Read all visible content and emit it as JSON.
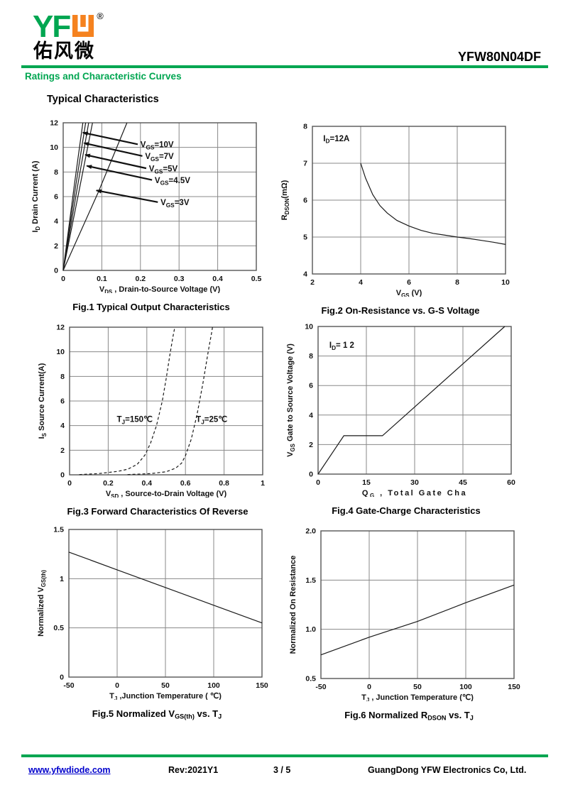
{
  "colors": {
    "brand_green": "#00a651",
    "brand_orange": "#f5821f",
    "link_blue": "#0000cc"
  },
  "header": {
    "logo_text_yf": "YF",
    "logo_w_glyph": "orange-u-notch-logo-glyph",
    "registered": "®",
    "logo_cjk": "佑风微",
    "part_number": "YFW80N04DF",
    "section_title": "Ratings and Characteristic Curves"
  },
  "main": {
    "heading": "Typical Characteristics"
  },
  "footer": {
    "website": "www.yfwdiode.com",
    "revision": "Rev:2021Y1",
    "page": "3 / 5",
    "company": "GuangDong YFW Electronics Co, Ltd."
  },
  "chart_data": [
    {
      "id": "fig1",
      "type": "line",
      "caption": [
        {
          "t": "Fig.1 Typical Output Characteristics"
        }
      ],
      "x": {
        "min": 0,
        "max": 0.5,
        "ticks": [
          [
            0,
            "0"
          ],
          [
            0.1,
            "0.1"
          ],
          [
            0.2,
            "0.2"
          ],
          [
            0.3,
            "0.3"
          ],
          [
            0.4,
            "0.4"
          ],
          [
            0.5,
            "0.5"
          ]
        ],
        "label": [
          {
            "t": "V"
          },
          {
            "t": "DS",
            "sub": 1
          },
          {
            "t": " , Drain-to-Source Voltage (V)"
          }
        ]
      },
      "y": {
        "min": 0,
        "max": 12,
        "ticks": [
          [
            0,
            "0"
          ],
          [
            2,
            "2"
          ],
          [
            4,
            "4"
          ],
          [
            6,
            "6"
          ],
          [
            8,
            "8"
          ],
          [
            10,
            "10"
          ],
          [
            12,
            "12"
          ]
        ],
        "label": [
          {
            "t": "I"
          },
          {
            "t": "D",
            "sub": 1
          },
          {
            "t": " Drain Current (A)"
          }
        ]
      },
      "series": [
        {
          "name": "VGS=10V",
          "points": [
            [
              0,
              0
            ],
            [
              0.03,
              7.2
            ],
            [
              0.051,
              12
            ]
          ]
        },
        {
          "name": "VGS=7V",
          "points": [
            [
              0,
              0
            ],
            [
              0.033,
              7.0
            ],
            [
              0.058,
              12
            ]
          ]
        },
        {
          "name": "VGS=5V",
          "points": [
            [
              0,
              0
            ],
            [
              0.037,
              6.8
            ],
            [
              0.066,
              12
            ]
          ]
        },
        {
          "name": "VGS=4.5V",
          "points": [
            [
              0,
              0
            ],
            [
              0.042,
              6.6
            ],
            [
              0.076,
              12
            ]
          ]
        },
        {
          "name": "VGS=3V",
          "points": [
            [
              0,
              0
            ],
            [
              0.09,
              6.3
            ],
            [
              0.165,
              12
            ]
          ]
        }
      ],
      "labels": [
        {
          "segments": [
            {
              "t": "V"
            },
            {
              "t": "GS",
              "sub": 1
            },
            {
              "t": "=10V"
            }
          ],
          "x": 0.2,
          "y": 10.0,
          "anchor": "start",
          "arrow": [
            [
              0.193,
              10.25
            ],
            [
              0.051,
              11.2
            ]
          ]
        },
        {
          "segments": [
            {
              "t": "V"
            },
            {
              "t": "GS",
              "sub": 1
            },
            {
              "t": "=7V"
            }
          ],
          "x": 0.212,
          "y": 9.05,
          "anchor": "start",
          "arrow": [
            [
              0.205,
              9.3
            ],
            [
              0.054,
              10.35
            ]
          ]
        },
        {
          "segments": [
            {
              "t": "V"
            },
            {
              "t": "GS",
              "sub": 1
            },
            {
              "t": "=5V"
            }
          ],
          "x": 0.222,
          "y": 8.05,
          "anchor": "start",
          "arrow": [
            [
              0.215,
              8.3
            ],
            [
              0.057,
              9.4
            ]
          ]
        },
        {
          "segments": [
            {
              "t": "V"
            },
            {
              "t": "GS",
              "sub": 1
            },
            {
              "t": "=4.5V"
            }
          ],
          "x": 0.237,
          "y": 7.1,
          "anchor": "start",
          "arrow": [
            [
              0.23,
              7.35
            ],
            [
              0.061,
              8.5
            ]
          ]
        },
        {
          "segments": [
            {
              "t": "V"
            },
            {
              "t": "GS",
              "sub": 1
            },
            {
              "t": "=3V"
            }
          ],
          "x": 0.252,
          "y": 5.3,
          "anchor": "start",
          "arrow": [
            [
              0.245,
              5.55
            ],
            [
              0.086,
              6.5
            ]
          ]
        }
      ]
    },
    {
      "id": "fig2",
      "type": "line",
      "caption": [
        {
          "t": "Fig.2 On-Resistance vs. G-S Voltage"
        }
      ],
      "x": {
        "min": 2,
        "max": 10,
        "ticks": [
          [
            2,
            "2"
          ],
          [
            4,
            "4"
          ],
          [
            6,
            "6"
          ],
          [
            8,
            "8"
          ],
          [
            10,
            "10"
          ]
        ],
        "label": [
          {
            "t": "V"
          },
          {
            "t": "GS",
            "sub": 1
          },
          {
            "t": " (V)"
          }
        ]
      },
      "y": {
        "min": 4,
        "max": 8,
        "ticks": [
          [
            4,
            "4"
          ],
          [
            5,
            "5"
          ],
          [
            6,
            "6"
          ],
          [
            7,
            "7"
          ],
          [
            8,
            "8"
          ]
        ],
        "label": [
          {
            "t": "R"
          },
          {
            "t": "DSON",
            "sub": 1
          },
          {
            "t": "(mΩ)"
          }
        ]
      },
      "series": [
        {
          "name": "ID=12A",
          "points": [
            [
              4,
              7.0
            ],
            [
              4.2,
              6.6
            ],
            [
              4.5,
              6.15
            ],
            [
              4.8,
              5.85
            ],
            [
              5.1,
              5.65
            ],
            [
              5.5,
              5.45
            ],
            [
              6,
              5.3
            ],
            [
              6.5,
              5.18
            ],
            [
              7,
              5.1
            ],
            [
              7.5,
              5.05
            ],
            [
              8,
              5.0
            ],
            [
              8.5,
              4.96
            ],
            [
              9,
              4.91
            ],
            [
              9.5,
              4.86
            ],
            [
              10,
              4.8
            ]
          ]
        }
      ],
      "labels": [
        {
          "segments": [
            {
              "t": "I"
            },
            {
              "t": "D",
              "sub": 1
            },
            {
              "t": "=12A"
            }
          ],
          "x": 2.45,
          "y": 7.6,
          "anchor": "start"
        }
      ]
    },
    {
      "id": "fig3",
      "type": "line",
      "caption": [
        {
          "t": "Fig.3 Forward Characteristics Of Reverse"
        }
      ],
      "x": {
        "min": 0,
        "max": 1,
        "ticks": [
          [
            0,
            "0"
          ],
          [
            0.2,
            "0.2"
          ],
          [
            0.4,
            "0.4"
          ],
          [
            0.6,
            "0.6"
          ],
          [
            0.8,
            "0.8"
          ],
          [
            1,
            "1"
          ]
        ],
        "label": [
          {
            "t": "V"
          },
          {
            "t": "SD",
            "sub": 1
          },
          {
            "t": " , Source-to-Drain Voltage (V)"
          }
        ]
      },
      "y": {
        "min": 0,
        "max": 12,
        "ticks": [
          [
            0,
            "0"
          ],
          [
            2,
            "2"
          ],
          [
            4,
            "4"
          ],
          [
            6,
            "6"
          ],
          [
            8,
            "8"
          ],
          [
            10,
            "10"
          ],
          [
            12,
            "12"
          ]
        ],
        "label": [
          {
            "t": "I"
          },
          {
            "t": "S",
            "sub": 1
          },
          {
            "t": " Source Current(A)"
          }
        ]
      },
      "series": [
        {
          "name": "TJ=150C",
          "dash": "4,3",
          "points": [
            [
              0.05,
              0.02
            ],
            [
              0.15,
              0.1
            ],
            [
              0.25,
              0.28
            ],
            [
              0.3,
              0.45
            ],
            [
              0.35,
              0.85
            ],
            [
              0.39,
              1.6
            ],
            [
              0.42,
              2.6
            ],
            [
              0.45,
              4.0
            ],
            [
              0.48,
              6.0
            ],
            [
              0.5,
              7.8
            ],
            [
              0.52,
              9.8
            ],
            [
              0.535,
              11.2
            ],
            [
              0.545,
              12
            ]
          ]
        },
        {
          "name": "TJ=25C",
          "dash": "4,3",
          "points": [
            [
              0.3,
              0.02
            ],
            [
              0.42,
              0.1
            ],
            [
              0.5,
              0.25
            ],
            [
              0.55,
              0.55
            ],
            [
              0.58,
              0.95
            ],
            [
              0.6,
              1.55
            ],
            [
              0.63,
              2.9
            ],
            [
              0.66,
              4.9
            ],
            [
              0.69,
              7.4
            ],
            [
              0.72,
              10.2
            ],
            [
              0.735,
              11.5
            ],
            [
              0.74,
              12
            ]
          ]
        }
      ],
      "labels": [
        {
          "segments": [
            {
              "t": "T"
            },
            {
              "t": "J",
              "sub": 1
            },
            {
              "t": "=150℃"
            }
          ],
          "x": 0.43,
          "y": 4.3,
          "anchor": "end"
        },
        {
          "segments": [
            {
              "t": "T"
            },
            {
              "t": "J",
              "sub": 1
            },
            {
              "t": "=25℃"
            }
          ],
          "x": 0.655,
          "y": 4.3,
          "anchor": "start"
        }
      ]
    },
    {
      "id": "fig4",
      "type": "line",
      "caption": [
        {
          "t": "Fig.4 Gate-Charge Characteristics"
        }
      ],
      "x": {
        "min": 0,
        "max": 60,
        "ticks": [
          [
            0,
            "0"
          ],
          [
            15,
            "15"
          ],
          [
            30,
            "30"
          ],
          [
            45,
            "45"
          ],
          [
            60,
            "60"
          ]
        ],
        "spaced": 1,
        "label": [
          {
            "t": "Q"
          },
          {
            "t": "G",
            "sub": 1
          },
          {
            "t": " , Total Gate Cha"
          }
        ]
      },
      "y": {
        "min": 0,
        "max": 10,
        "ticks": [
          [
            0,
            "0"
          ],
          [
            2,
            "2"
          ],
          [
            4,
            "4"
          ],
          [
            6,
            "6"
          ],
          [
            8,
            "8"
          ],
          [
            10,
            "10"
          ]
        ],
        "label": [
          {
            "t": "V"
          },
          {
            "t": "GS",
            "sub": 1
          },
          {
            "t": "  Gate to Source Voltage (V)"
          }
        ]
      },
      "series": [
        {
          "name": "gate-charge",
          "points": [
            [
              0,
              0
            ],
            [
              8,
              2.6
            ],
            [
              20,
              2.6
            ],
            [
              58,
              10
            ]
          ]
        }
      ],
      "labels": [
        {
          "segments": [
            {
              "t": "I"
            },
            {
              "t": "D",
              "sub": 1
            },
            {
              "t": "= 1 2"
            }
          ],
          "x": 3.5,
          "y": 8.55,
          "anchor": "start"
        }
      ]
    },
    {
      "id": "fig5",
      "type": "line",
      "caption": [
        {
          "t": "Fig.5 Normalized V"
        },
        {
          "t": "GS(th)",
          "sub": 1
        },
        {
          "t": " vs. T"
        },
        {
          "t": "J",
          "sub": 1
        }
      ],
      "x": {
        "min": -50,
        "max": 150,
        "ticks": [
          [
            -50,
            "-50"
          ],
          [
            0,
            "0"
          ],
          [
            50,
            "50"
          ],
          [
            100,
            "100"
          ],
          [
            150,
            "150"
          ]
        ],
        "label": [
          {
            "t": "T"
          },
          {
            "t": "J",
            "sub": 1
          },
          {
            "t": " ,Junction Temperature ( ℃)"
          }
        ]
      },
      "y": {
        "min": 0,
        "max": 1.5,
        "ticks": [
          [
            0,
            "0"
          ],
          [
            0.5,
            "0.5"
          ],
          [
            1,
            "1"
          ],
          [
            1.5,
            "1.5"
          ]
        ],
        "label": [
          {
            "t": "Normalized V"
          },
          {
            "t": "GS(th)",
            "sub": 1
          }
        ]
      },
      "series": [
        {
          "name": "normalized-vgsth",
          "points": [
            [
              -50,
              1.27
            ],
            [
              0,
              1.09
            ],
            [
              50,
              0.91
            ],
            [
              100,
              0.73
            ],
            [
              150,
              0.55
            ]
          ]
        }
      ],
      "labels": []
    },
    {
      "id": "fig6",
      "type": "line",
      "caption": [
        {
          "t": "Fig.6 Normalized R"
        },
        {
          "t": "DSON",
          "sub": 1
        },
        {
          "t": " vs. T"
        },
        {
          "t": "J",
          "sub": 1
        }
      ],
      "x": {
        "min": -50,
        "max": 150,
        "ticks": [
          [
            -50,
            "-50"
          ],
          [
            0,
            "0"
          ],
          [
            50,
            "50"
          ],
          [
            100,
            "100"
          ],
          [
            150,
            "150"
          ]
        ],
        "label": [
          {
            "t": "T"
          },
          {
            "t": "J",
            "sub": 1
          },
          {
            "t": " , Junction Temperature (℃)"
          }
        ]
      },
      "y": {
        "min": 0.5,
        "max": 2,
        "ticks": [
          [
            0.5,
            "0.5"
          ],
          [
            1,
            "1.0"
          ],
          [
            1.5,
            "1.5"
          ],
          [
            2,
            "2.0"
          ]
        ],
        "label": [
          {
            "t": "Normalized On Resistance"
          }
        ]
      },
      "series": [
        {
          "name": "normalized-rdson",
          "points": [
            [
              -50,
              0.74
            ],
            [
              0,
              0.92
            ],
            [
              50,
              1.08
            ],
            [
              100,
              1.27
            ],
            [
              150,
              1.45
            ]
          ]
        }
      ],
      "labels": []
    }
  ]
}
